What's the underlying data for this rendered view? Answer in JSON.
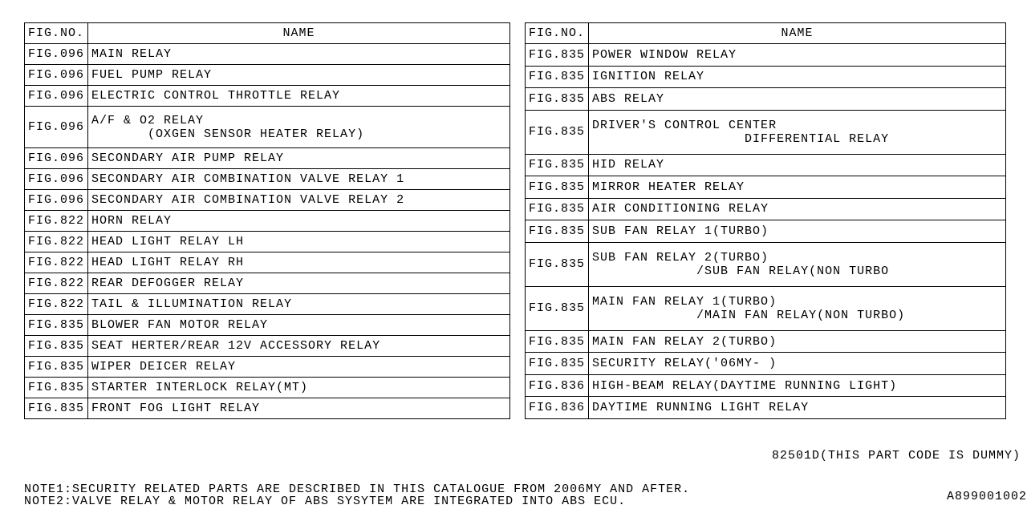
{
  "headers": {
    "fig": "FIG.NO.",
    "name": "NAME"
  },
  "left": [
    {
      "fig": "FIG.096",
      "name": "MAIN RELAY"
    },
    {
      "fig": "FIG.096",
      "name": "FUEL PUMP RELAY"
    },
    {
      "fig": "FIG.096",
      "name": "ELECTRIC CONTROL THROTTLE RELAY"
    },
    {
      "fig": "FIG.096",
      "name": "A/F & O2 RELAY\n       (OXGEN SENSOR HEATER RELAY)",
      "tall": true
    },
    {
      "fig": "FIG.096",
      "name": "SECONDARY AIR PUMP RELAY"
    },
    {
      "fig": "FIG.096",
      "name": "SECONDARY AIR COMBINATION VALVE RELAY 1"
    },
    {
      "fig": "FIG.096",
      "name": "SECONDARY AIR COMBINATION VALVE RELAY 2"
    },
    {
      "fig": "FIG.822",
      "name": "HORN RELAY"
    },
    {
      "fig": "FIG.822",
      "name": "HEAD LIGHT RELAY LH"
    },
    {
      "fig": "FIG.822",
      "name": "HEAD LIGHT RELAY RH"
    },
    {
      "fig": "FIG.822",
      "name": "REAR DEFOGGER RELAY"
    },
    {
      "fig": "FIG.822",
      "name": "TAIL & ILLUMINATION RELAY"
    },
    {
      "fig": "FIG.835",
      "name": "BLOWER FAN MOTOR RELAY"
    },
    {
      "fig": "FIG.835",
      "name": "SEAT HERTER/REAR 12V ACCESSORY RELAY"
    },
    {
      "fig": "FIG.835",
      "name": "WIPER DEICER RELAY"
    },
    {
      "fig": "FIG.835",
      "name": "STARTER INTERLOCK RELAY(MT)"
    },
    {
      "fig": "FIG.835",
      "name": "FRONT FOG LIGHT RELAY"
    }
  ],
  "right": [
    {
      "fig": "FIG.835",
      "name": "POWER WINDOW RELAY"
    },
    {
      "fig": "FIG.835",
      "name": "IGNITION RELAY"
    },
    {
      "fig": "FIG.835",
      "name": "ABS RELAY"
    },
    {
      "fig": "FIG.835",
      "name": "DRIVER'S CONTROL CENTER\n                   DIFFERENTIAL RELAY",
      "tall": true
    },
    {
      "fig": "FIG.835",
      "name": "HID RELAY"
    },
    {
      "fig": "FIG.835",
      "name": "MIRROR HEATER RELAY"
    },
    {
      "fig": "FIG.835",
      "name": "AIR CONDITIONING RELAY"
    },
    {
      "fig": "FIG.835",
      "name": "SUB FAN RELAY 1(TURBO)"
    },
    {
      "fig": "FIG.835",
      "name": "SUB FAN RELAY 2(TURBO)\n             /SUB FAN RELAY(NON TURBO",
      "tall": true
    },
    {
      "fig": "FIG.835",
      "name": "MAIN FAN RELAY 1(TURBO)\n             /MAIN FAN RELAY(NON TURBO)",
      "tall": true
    },
    {
      "fig": "FIG.835",
      "name": "MAIN FAN RELAY 2(TURBO)"
    },
    {
      "fig": "FIG.835",
      "name": "SECURITY RELAY('06MY- )"
    },
    {
      "fig": "FIG.836",
      "name": "HIGH-BEAM RELAY(DAYTIME RUNNING LIGHT)"
    },
    {
      "fig": "FIG.836",
      "name": "DAYTIME RUNNING LIGHT RELAY"
    }
  ],
  "dummy": "82501D(THIS PART CODE IS DUMMY)",
  "note1": "NOTE1:SECURITY RELATED PARTS ARE DESCRIBED IN THIS CATALOGUE FROM 2006MY AND AFTER.",
  "note2": "NOTE2:VALVE RELAY & MOTOR RELAY OF ABS SYSYTEM ARE INTEGRATED INTO ABS ECU.",
  "code": "A899001002"
}
